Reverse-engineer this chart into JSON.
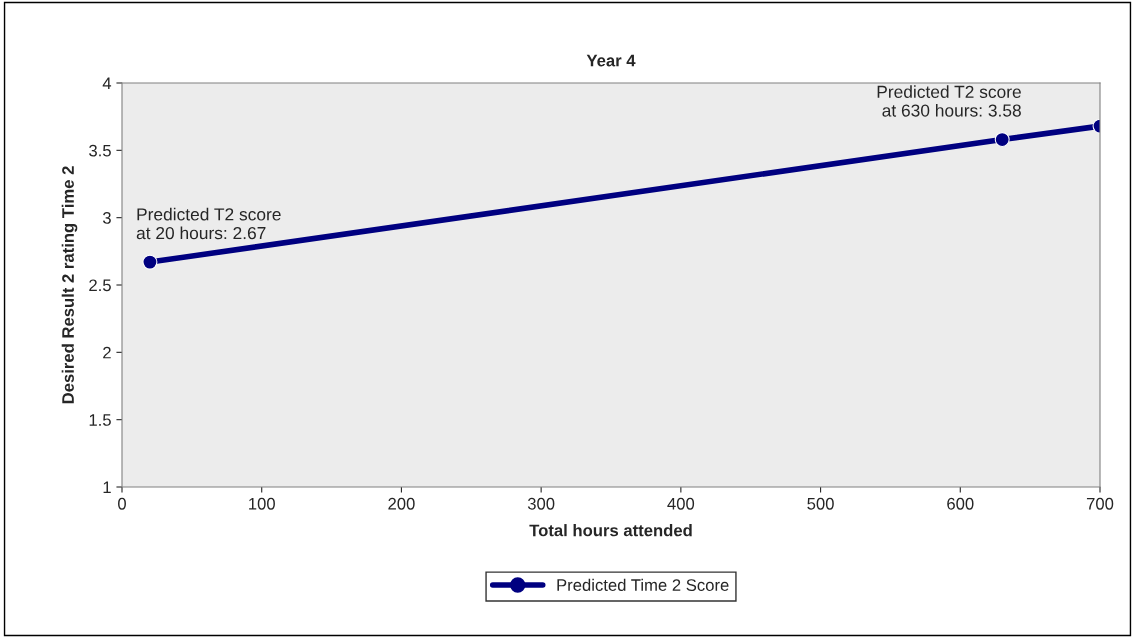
{
  "chart_data": {
    "type": "line",
    "title": "Year 4",
    "xlabel": "Total hours attended",
    "ylabel": "Desired Result 2 rating Time 2",
    "series": [
      {
        "name": "Predicted Time 2 Score",
        "color": "#000080",
        "x": [
          20,
          630,
          700
        ],
        "values": [
          2.67,
          3.58,
          3.68
        ]
      }
    ],
    "annotations": [
      {
        "text": "Predicted T2 score\nat 20 hours: 2.67",
        "x": 20,
        "y": 2.67
      },
      {
        "text": "Predicted T2 score\nat 630 hours: 3.58",
        "x": 630,
        "y": 3.58
      }
    ],
    "xlim": [
      0,
      700
    ],
    "xticks": [
      0,
      100,
      200,
      300,
      400,
      500,
      600,
      700
    ],
    "ylim": [
      1,
      4
    ],
    "yticks": [
      1,
      1.5,
      2,
      2.5,
      3,
      3.5,
      4
    ],
    "grid": false,
    "legend": "bottom",
    "marker": "circle",
    "line_style": "solid"
  }
}
